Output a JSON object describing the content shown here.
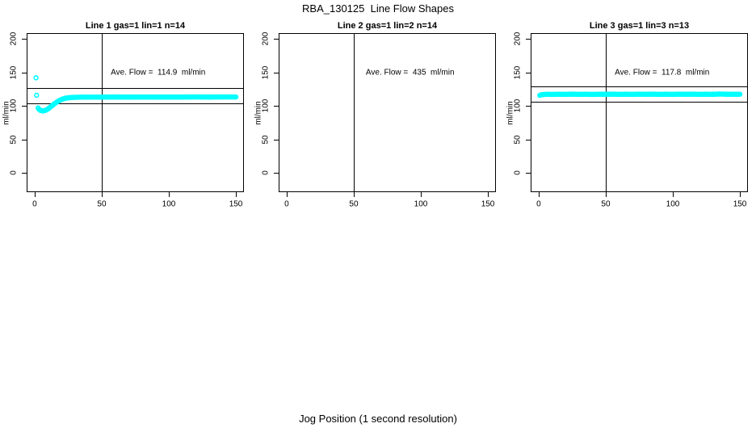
{
  "page": {
    "title": "RBA_130125  Line Flow Shapes",
    "xlabel": "Jog Position (1 second resolution)",
    "background": "#ffffff",
    "line_color": "#000000"
  },
  "chart_data": [
    {
      "type": "scatter",
      "title": "Line 1 gas=1 lin=1 n=14",
      "annotation": "Ave. Flow =  114.9  ml/min",
      "annotation_xy": [
        92,
        150
      ],
      "ave_flow_ml_min": 114.9,
      "ylabel": "ml/min",
      "xlim": [
        -6,
        156
      ],
      "ylim": [
        -28.8,
        208.8
      ],
      "x_ticks": [
        0,
        50,
        100,
        150
      ],
      "y_ticks": [
        0,
        50,
        100,
        150,
        200
      ],
      "vline_x": 50,
      "hlines": [
        126.4,
        103.4
      ],
      "marker": "open-circle",
      "marker_color": "#00ffff",
      "outliers": [
        [
          1.0,
          142.0
        ],
        [
          1.4,
          116.0
        ]
      ],
      "trace": [
        [
          2.5,
          97.0
        ],
        [
          3.5,
          94.5
        ],
        [
          4.5,
          93.2
        ],
        [
          5.5,
          92.7
        ],
        [
          6.5,
          92.7
        ],
        [
          7.5,
          93.1
        ],
        [
          8.5,
          93.9
        ],
        [
          9.5,
          95.1
        ],
        [
          10.5,
          96.4
        ],
        [
          12,
          98.9
        ],
        [
          13.5,
          101.3
        ],
        [
          15,
          103.7
        ],
        [
          16.5,
          105.8
        ],
        [
          18,
          107.7
        ],
        [
          19.5,
          109.2
        ],
        [
          21,
          110.4
        ],
        [
          22.5,
          111.3
        ],
        [
          24,
          111.9
        ],
        [
          26,
          112.4
        ],
        [
          28,
          112.7
        ],
        [
          30,
          112.9
        ],
        [
          35,
          113.1
        ],
        [
          40,
          113.2
        ],
        [
          50,
          113.2
        ],
        [
          60,
          113.3
        ],
        [
          70,
          113.2
        ],
        [
          80,
          113.3
        ],
        [
          90,
          113.2
        ],
        [
          100,
          113.3
        ],
        [
          110,
          113.3
        ],
        [
          120,
          113.4
        ],
        [
          130,
          113.3
        ],
        [
          140,
          113.4
        ],
        [
          150,
          113.4
        ]
      ]
    },
    {
      "type": "scatter",
      "title": "Line 2 gas=1 lin=2 n=14",
      "annotation": "Ave. Flow =  435  ml/min",
      "annotation_xy": [
        92,
        150
      ],
      "ave_flow_ml_min": 435,
      "ylabel": "ml/min",
      "xlim": [
        -6,
        156
      ],
      "ylim": [
        -28.8,
        208.8
      ],
      "x_ticks": [
        0,
        50,
        100,
        150
      ],
      "y_ticks": [
        0,
        50,
        100,
        150,
        200
      ],
      "vline_x": 50,
      "hlines": [],
      "marker": "open-circle",
      "marker_color": "#00ffff",
      "outliers": [],
      "trace": []
    },
    {
      "type": "scatter",
      "title": "Line 3 gas=1 lin=3 n=13",
      "annotation": "Ave. Flow =  117.8  ml/min",
      "annotation_xy": [
        92,
        150
      ],
      "ave_flow_ml_min": 117.8,
      "ylabel": "ml/min",
      "xlim": [
        -6,
        156
      ],
      "ylim": [
        -28.8,
        208.8
      ],
      "x_ticks": [
        0,
        50,
        100,
        150
      ],
      "y_ticks": [
        0,
        50,
        100,
        150,
        200
      ],
      "vline_x": 50,
      "hlines": [
        129.6,
        106.0
      ],
      "marker": "open-circle",
      "marker_color": "#00ffff",
      "outliers": [
        [
          0.8,
          115.8
        ]
      ],
      "trace": [
        [
          1.5,
          116.4
        ],
        [
          3,
          117.0
        ],
        [
          6,
          117.4
        ],
        [
          10,
          117.2
        ],
        [
          15,
          117.5
        ],
        [
          20,
          117.3
        ],
        [
          25,
          117.6
        ],
        [
          30,
          117.3
        ],
        [
          35,
          117.5
        ],
        [
          40,
          117.2
        ],
        [
          45,
          117.5
        ],
        [
          50,
          117.4
        ],
        [
          55,
          117.6
        ],
        [
          60,
          117.3
        ],
        [
          65,
          117.5
        ],
        [
          70,
          117.3
        ],
        [
          75,
          117.6
        ],
        [
          80,
          117.4
        ],
        [
          85,
          117.6
        ],
        [
          90,
          117.3
        ],
        [
          95,
          117.5
        ],
        [
          100,
          117.3
        ],
        [
          105,
          117.6
        ],
        [
          110,
          117.4
        ],
        [
          115,
          117.6
        ],
        [
          120,
          117.3
        ],
        [
          125,
          117.5
        ],
        [
          130,
          117.3
        ],
        [
          135,
          117.8
        ],
        [
          140,
          117.5
        ],
        [
          145,
          117.4
        ],
        [
          150,
          117.5
        ]
      ]
    }
  ]
}
